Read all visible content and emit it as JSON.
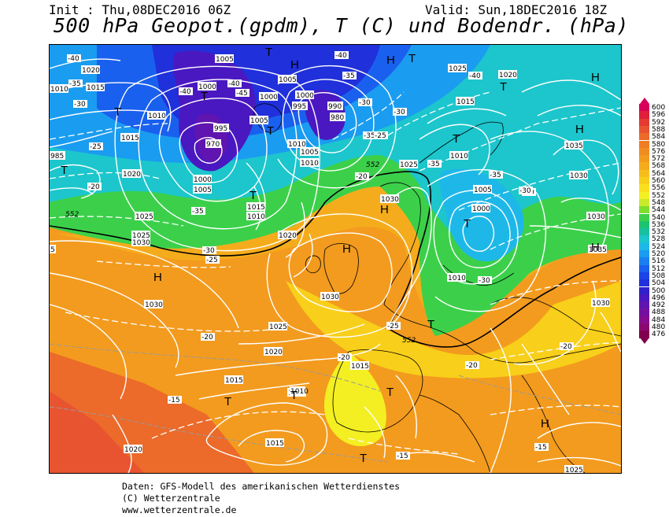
{
  "header": {
    "init": "Init : Thu,08DEC2016 06Z",
    "valid": "Valid: Sun,18DEC2016 18Z",
    "title": "500 hPa Geopot.(gpdm), T (C) und Bodendr. (hPa)"
  },
  "legend": {
    "levels": [
      "600",
      "596",
      "592",
      "588",
      "584",
      "580",
      "576",
      "572",
      "568",
      "564",
      "560",
      "556",
      "552",
      "548",
      "544",
      "540",
      "536",
      "532",
      "528",
      "524",
      "520",
      "516",
      "512",
      "508",
      "504",
      "500",
      "496",
      "492",
      "488",
      "484",
      "480",
      "476"
    ],
    "colors": [
      "#d8005a",
      "#e01f3c",
      "#e43a30",
      "#e85430",
      "#ec6a2a",
      "#f07d24",
      "#f08c20",
      "#f39b1e",
      "#f5ac1c",
      "#f6bd1c",
      "#f8cf1a",
      "#fae01c",
      "#f4ef22",
      "#c8ea2a",
      "#7fdd2e",
      "#3cd04a",
      "#1cc470",
      "#18c0a0",
      "#1cc6cc",
      "#1eb8e8",
      "#1a9cf0",
      "#1a80f0",
      "#1a60ee",
      "#1c44e6",
      "#2030da",
      "#3020cc",
      "#4a18c0",
      "#6014b0",
      "#7410a0",
      "#860c8c",
      "#8a0870",
      "#800050"
    ]
  },
  "map": {
    "pressure_labels": [
      "1020",
      "1015",
      "1010",
      "1005",
      "1000",
      "1005",
      "1005",
      "995",
      "1000",
      "990",
      "995",
      "980",
      "970",
      "1000",
      "1005",
      "985",
      "1010",
      "1020",
      "1015",
      "1025",
      "1030",
      "1020",
      "1010",
      "1000",
      "1005",
      "1030",
      "1035",
      "1030",
      "1030",
      "1035",
      "1025",
      "1030",
      "1030",
      "1025",
      "1020",
      "1015",
      "1010",
      "1025",
      "1030",
      "1010",
      "1015",
      "1025",
      "1020",
      "1010",
      "1015",
      "1010",
      "1000",
      "1005",
      "1010",
      "1015",
      "1010",
      "1015",
      "1020",
      "1015",
      "1025",
      "1030"
    ],
    "temp_labels": [
      "-40",
      "-35",
      "-30",
      "-40",
      "-45",
      "-40",
      "-35",
      "-30",
      "-40",
      "-35",
      "-30",
      "-25",
      "-20",
      "-25",
      "-35",
      "-30",
      "-35",
      "-30",
      "-25",
      "-20",
      "-15",
      "-20",
      "-30",
      "-20",
      "-25",
      "-20",
      "-15",
      "-20",
      "-15",
      "-30",
      "-35",
      "-40"
    ],
    "geopot_labels": [
      "552",
      "552",
      "552"
    ],
    "highs": [
      "H",
      "H",
      "H",
      "H",
      "H",
      "H",
      "H",
      "H",
      "H"
    ],
    "lows": [
      "T",
      "T",
      "T",
      "T",
      "T",
      "T",
      "T",
      "T",
      "T",
      "T",
      "T",
      "T",
      "T",
      "T",
      "T"
    ]
  },
  "footer": {
    "line1": "Daten: GFS-Modell des amerikanischen Wetterdienstes",
    "line2": "(C) Wetterzentrale",
    "line3": "www.wetterzentrale.de"
  }
}
